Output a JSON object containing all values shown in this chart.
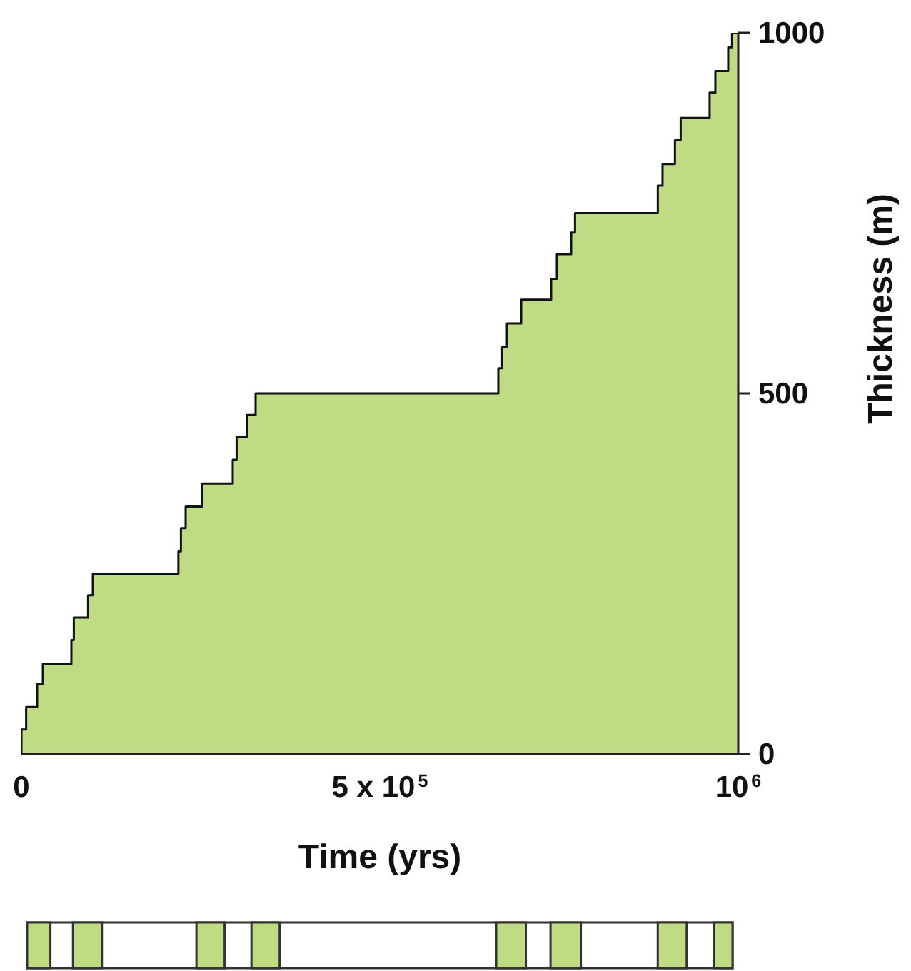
{
  "chart_data": {
    "type": "area",
    "xlabel": "Time (yrs)",
    "ylabel": "Thickness (m)",
    "x": [
      0,
      0,
      6600,
      6600,
      21900,
      21900,
      29900,
      29900,
      69700,
      69700,
      73100,
      73100,
      93000,
      93000,
      99600,
      99600,
      219000,
      219000,
      222500,
      222500,
      229100,
      229100,
      252400,
      252400,
      294800,
      294800,
      300200,
      300200,
      314700,
      314700,
      326700,
      326700,
      665300,
      665300,
      670700,
      670700,
      677300,
      677300,
      697200,
      697200,
      739000,
      739000,
      747000,
      747000,
      766900,
      766900,
      772300,
      772300,
      887800,
      887800,
      894400,
      894400,
      911700,
      911700,
      919700,
      919700,
      960100,
      960100,
      968100,
      968100,
      986000,
      986000,
      991400,
      991400,
      1000000
    ],
    "values": [
      0,
      34,
      34,
      65,
      65,
      97,
      97,
      125,
      125,
      158,
      158,
      189,
      189,
      220,
      220,
      250,
      250,
      281,
      281,
      313,
      313,
      343,
      343,
      375,
      375,
      408,
      408,
      440,
      440,
      470,
      470,
      500,
      500,
      535,
      535,
      564,
      564,
      597,
      597,
      630,
      630,
      659,
      659,
      693,
      693,
      723,
      723,
      750,
      750,
      788,
      788,
      818,
      818,
      851,
      851,
      882,
      882,
      917,
      917,
      947,
      947,
      980,
      980,
      1000,
      1000
    ],
    "color": "#bfdb83",
    "xlim": [
      0,
      1000000
    ],
    "ylim": [
      0,
      1000
    ],
    "xticks": [
      0,
      {
        "value": 500000,
        "label": "5 x 10$^{5}$"
      },
      {
        "value": 1000000,
        "label": "10$^{6}$"
      }
    ],
    "yticks": [
      0,
      500,
      1000
    ],
    "grid": false,
    "legend": false
  }
}
